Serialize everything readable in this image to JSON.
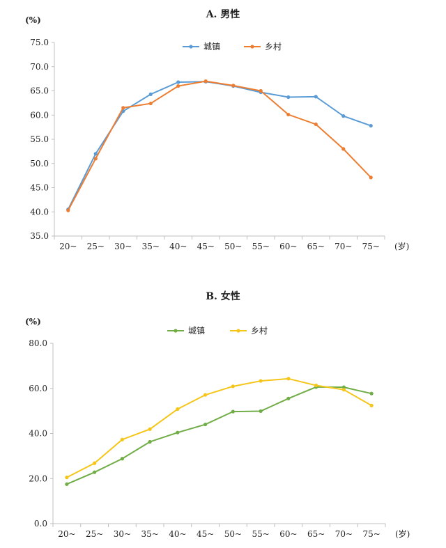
{
  "chart_data": [
    {
      "type": "line",
      "title": "A. 男性",
      "ylabel": "(%)",
      "xunit": "(岁)",
      "categories": [
        "20~",
        "25~",
        "30~",
        "35~",
        "40~",
        "45~",
        "50~",
        "55~",
        "60~",
        "65~",
        "70~",
        "75~"
      ],
      "ylim": [
        35,
        75
      ],
      "yticks": [
        "35.0",
        "40.0",
        "45.0",
        "50.0",
        "55.0",
        "60.0",
        "65.0",
        "70.0",
        "75.0"
      ],
      "grid": false,
      "legend": "top-center",
      "series": [
        {
          "name": "城镇",
          "color": "#5b9bd5",
          "values": [
            40.5,
            52.0,
            60.8,
            64.3,
            66.8,
            66.9,
            66.0,
            64.7,
            63.7,
            63.8,
            59.8,
            57.8
          ]
        },
        {
          "name": "乡村",
          "color": "#ed7d31",
          "values": [
            40.3,
            51.0,
            61.5,
            62.4,
            66.0,
            67.0,
            66.1,
            65.0,
            60.1,
            58.1,
            53.0,
            47.1
          ]
        }
      ]
    },
    {
      "type": "line",
      "title": "B. 女性",
      "ylabel": "(%)",
      "xunit": "(岁)",
      "categories": [
        "20~",
        "25~",
        "30~",
        "35~",
        "40~",
        "45~",
        "50~",
        "55~",
        "60~",
        "65~",
        "70~",
        "75~"
      ],
      "ylim": [
        0,
        80
      ],
      "yticks": [
        "0.0",
        "20.0",
        "40.0",
        "60.0",
        "80.0"
      ],
      "grid": false,
      "legend": "top-center",
      "series": [
        {
          "name": "城镇",
          "color": "#70ad47",
          "values": [
            17.5,
            22.8,
            28.8,
            36.3,
            40.4,
            44.0,
            49.7,
            49.9,
            55.5,
            60.6,
            60.5,
            57.7
          ]
        },
        {
          "name": "乡村",
          "color": "#f5c518",
          "values": [
            20.5,
            26.8,
            37.3,
            41.9,
            50.8,
            57.1,
            60.9,
            63.3,
            64.3,
            61.3,
            59.4,
            52.4
          ]
        }
      ]
    }
  ]
}
